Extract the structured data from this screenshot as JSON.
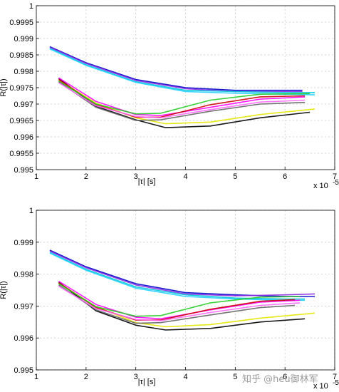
{
  "watermark": "知乎 @heu御林军",
  "chart_data": [
    {
      "type": "line",
      "xlabel": "|τ| [s]",
      "ylabel": "R(|τ|)",
      "x_multiplier_label": "x 10",
      "x_multiplier_exp": "-5",
      "xlim": [
        1,
        7
      ],
      "ylim": [
        0.995,
        1
      ],
      "xticks": [
        "1",
        "2",
        "3",
        "4",
        "5",
        "6",
        "7"
      ],
      "yticks": [
        "0.995",
        "0.9955",
        "0.996",
        "0.9965",
        "0.997",
        "0.9975",
        "0.998",
        "0.9985",
        "0.999",
        "0.9995",
        "1"
      ],
      "grid": true,
      "series": [
        {
          "color": "#0000cc",
          "x": [
            1.27,
            2.0,
            3.0,
            4.0,
            5.0,
            6.0,
            6.35
          ],
          "y": [
            0.99875,
            0.99826,
            0.99775,
            0.9975,
            0.99742,
            0.99742,
            0.99742
          ]
        },
        {
          "color": "#8a2be2",
          "x": [
            1.27,
            2.0,
            3.0,
            4.0,
            5.0,
            6.0,
            6.35
          ],
          "y": [
            0.99873,
            0.99824,
            0.99772,
            0.99747,
            0.99738,
            0.99738,
            0.99738
          ]
        },
        {
          "color": "#00c8dc",
          "x": [
            1.27,
            2.0,
            3.0,
            4.0,
            5.0,
            6.0,
            6.6
          ],
          "y": [
            0.9987,
            0.9982,
            0.99768,
            0.99742,
            0.99738,
            0.99735,
            0.99735
          ]
        },
        {
          "color": "#20d0ff",
          "x": [
            1.27,
            2.0,
            3.0,
            4.0,
            5.0,
            6.0,
            6.6
          ],
          "y": [
            0.99868,
            0.99818,
            0.99766,
            0.99738,
            0.99733,
            0.9973,
            0.99728
          ]
        },
        {
          "color": "#000000",
          "x": [
            1.45,
            2.2,
            3.0,
            3.6,
            4.5,
            5.5,
            6.5
          ],
          "y": [
            0.99778,
            0.99693,
            0.99652,
            0.99628,
            0.99633,
            0.99658,
            0.99675
          ]
        },
        {
          "color": "#e6e600",
          "x": [
            1.45,
            2.2,
            3.0,
            3.6,
            4.5,
            5.5,
            6.6
          ],
          "y": [
            0.99773,
            0.99703,
            0.99658,
            0.9964,
            0.99645,
            0.99668,
            0.99685
          ]
        },
        {
          "color": "#ff00ff",
          "x": [
            1.45,
            2.2,
            3.0,
            3.5,
            4.5,
            5.5,
            6.4
          ],
          "y": [
            0.9978,
            0.99708,
            0.99668,
            0.99665,
            0.9969,
            0.99715,
            0.99722
          ]
        },
        {
          "color": "#cc0000",
          "x": [
            1.45,
            2.2,
            3.0,
            3.5,
            4.5,
            5.5,
            6.4
          ],
          "y": [
            0.99775,
            0.99698,
            0.9966,
            0.9966,
            0.99698,
            0.99722,
            0.99725
          ]
        },
        {
          "color": "#22cc22",
          "x": [
            1.45,
            2.2,
            3.0,
            3.5,
            4.5,
            5.5,
            6.5
          ],
          "y": [
            0.9977,
            0.997,
            0.9967,
            0.99672,
            0.99712,
            0.9973,
            0.99732
          ]
        },
        {
          "color": "#666666",
          "x": [
            1.45,
            2.2,
            3.0,
            3.5,
            4.5,
            5.5,
            6.4
          ],
          "y": [
            0.99768,
            0.9969,
            0.9965,
            0.99652,
            0.99678,
            0.997,
            0.99705
          ]
        },
        {
          "color": "#ff66ff",
          "x": [
            1.45,
            2.2,
            3.0,
            3.5,
            4.5,
            5.5,
            6.4
          ],
          "y": [
            0.99765,
            0.99695,
            0.99662,
            0.99658,
            0.99683,
            0.99706,
            0.99712
          ]
        }
      ]
    },
    {
      "type": "line",
      "xlabel": "|τ| [s]",
      "ylabel": "R(|τ|)",
      "x_multiplier_label": "x 10",
      "x_multiplier_exp": "-5",
      "xlim": [
        1,
        7
      ],
      "ylim": [
        0.995,
        1
      ],
      "xticks": [
        "1",
        "2",
        "3",
        "4",
        "5",
        "6",
        "7"
      ],
      "yticks": [
        "0.995",
        "0.996",
        "0.997",
        "0.998",
        "0.999",
        "1"
      ],
      "grid": true,
      "series": [
        {
          "color": "#0000cc",
          "x": [
            1.27,
            2.0,
            3.0,
            4.0,
            5.0,
            6.0,
            6.6
          ],
          "y": [
            0.99875,
            0.99823,
            0.9977,
            0.99742,
            0.99735,
            0.9973,
            0.9973
          ]
        },
        {
          "color": "#8a2be2",
          "x": [
            1.27,
            2.0,
            3.0,
            4.0,
            5.0,
            6.0,
            6.6
          ],
          "y": [
            0.99872,
            0.9982,
            0.99766,
            0.99738,
            0.99732,
            0.99735,
            0.99738
          ]
        },
        {
          "color": "#00c8dc",
          "x": [
            1.27,
            2.0,
            3.0,
            4.0,
            5.0,
            6.0,
            6.4
          ],
          "y": [
            0.99868,
            0.99815,
            0.9976,
            0.99735,
            0.99725,
            0.99722,
            0.99722
          ]
        },
        {
          "color": "#20d0ff",
          "x": [
            1.27,
            2.0,
            3.0,
            4.0,
            5.0,
            6.0,
            6.4
          ],
          "y": [
            0.99866,
            0.99812,
            0.99756,
            0.9973,
            0.99722,
            0.99718,
            0.99718
          ]
        },
        {
          "color": "#000000",
          "x": [
            1.45,
            2.2,
            3.0,
            3.6,
            4.5,
            5.5,
            6.4
          ],
          "y": [
            0.99775,
            0.99685,
            0.9964,
            0.99625,
            0.9963,
            0.9965,
            0.9966
          ]
        },
        {
          "color": "#e6e600",
          "x": [
            1.45,
            2.2,
            3.0,
            3.6,
            4.5,
            5.5,
            6.6
          ],
          "y": [
            0.99772,
            0.99698,
            0.99648,
            0.99635,
            0.99642,
            0.99662,
            0.99678
          ]
        },
        {
          "color": "#ff00ff",
          "x": [
            1.45,
            2.2,
            3.0,
            3.5,
            4.5,
            5.5,
            6.3
          ],
          "y": [
            0.99778,
            0.99705,
            0.99665,
            0.9966,
            0.99688,
            0.99712,
            0.99718
          ]
        },
        {
          "color": "#cc0000",
          "x": [
            1.45,
            2.2,
            3.0,
            3.5,
            4.5,
            5.5,
            6.2
          ],
          "y": [
            0.99773,
            0.99695,
            0.99656,
            0.99656,
            0.9969,
            0.99715,
            0.9972
          ]
        },
        {
          "color": "#22cc22",
          "x": [
            1.45,
            2.2,
            3.0,
            3.5,
            4.5,
            5.5,
            6.3
          ],
          "y": [
            0.9977,
            0.99698,
            0.99668,
            0.9967,
            0.9971,
            0.99728,
            0.9973
          ]
        },
        {
          "color": "#666666",
          "x": [
            1.45,
            2.2,
            3.0,
            3.5,
            4.5,
            5.5,
            6.2
          ],
          "y": [
            0.99766,
            0.99688,
            0.99646,
            0.99648,
            0.99672,
            0.99695,
            0.99702
          ]
        },
        {
          "color": "#ff66ff",
          "x": [
            1.45,
            2.2,
            3.0,
            3.5,
            4.5,
            5.5,
            6.3
          ],
          "y": [
            0.99762,
            0.99692,
            0.99658,
            0.99654,
            0.9968,
            0.99702,
            0.9971
          ]
        }
      ]
    }
  ]
}
